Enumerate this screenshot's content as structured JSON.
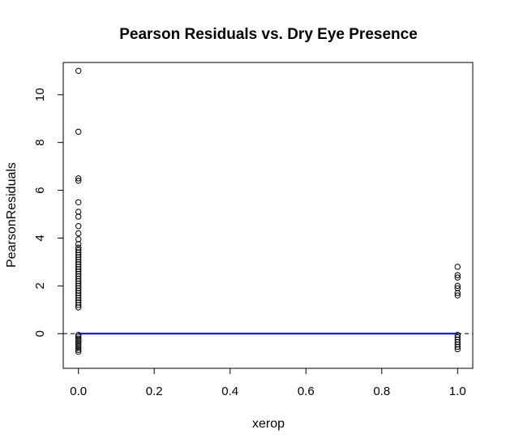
{
  "chart_data": {
    "type": "scatter",
    "title": "Pearson Residuals vs. Dry Eye Presence",
    "xlabel": "xerop",
    "ylabel": "PearsonResiduals",
    "xlim": [
      -0.04,
      1.04
    ],
    "ylim": [
      -1.45,
      11.35
    ],
    "x_ticks": [
      0.0,
      0.2,
      0.4,
      0.6,
      0.8,
      1.0
    ],
    "x_tick_labels": [
      "0.0",
      "0.2",
      "0.4",
      "0.6",
      "0.8",
      "1.0"
    ],
    "y_ticks": [
      0,
      2,
      4,
      6,
      8,
      10
    ],
    "y_tick_labels": [
      "0",
      "2",
      "4",
      "6",
      "8",
      "10"
    ],
    "grid": false,
    "legend": "none",
    "series": [
      {
        "marker": "open-circle",
        "points": [
          {
            "x": 0,
            "y": 11.0
          },
          {
            "x": 0,
            "y": 8.45
          },
          {
            "x": 0,
            "y": 6.5
          },
          {
            "x": 0,
            "y": 6.4
          },
          {
            "x": 0,
            "y": 5.5
          },
          {
            "x": 0,
            "y": 5.1
          },
          {
            "x": 0,
            "y": 4.9
          },
          {
            "x": 0,
            "y": 4.5
          },
          {
            "x": 0,
            "y": 4.2
          },
          {
            "x": 0,
            "y": 3.95
          },
          {
            "x": 0,
            "y": 3.75
          },
          {
            "x": 0,
            "y": 3.6
          },
          {
            "x": 0,
            "y": 3.5
          },
          {
            "x": 0,
            "y": 3.4
          },
          {
            "x": 0,
            "y": 3.3
          },
          {
            "x": 0,
            "y": 3.2
          },
          {
            "x": 0,
            "y": 3.1
          },
          {
            "x": 0,
            "y": 3.0
          },
          {
            "x": 0,
            "y": 2.9
          },
          {
            "x": 0,
            "y": 2.8
          },
          {
            "x": 0,
            "y": 2.7
          },
          {
            "x": 0,
            "y": 2.6
          },
          {
            "x": 0,
            "y": 2.5
          },
          {
            "x": 0,
            "y": 2.4
          },
          {
            "x": 0,
            "y": 2.3
          },
          {
            "x": 0,
            "y": 2.2
          },
          {
            "x": 0,
            "y": 2.1
          },
          {
            "x": 0,
            "y": 2.0
          },
          {
            "x": 0,
            "y": 1.9
          },
          {
            "x": 0,
            "y": 1.8
          },
          {
            "x": 0,
            "y": 1.7
          },
          {
            "x": 0,
            "y": 1.6
          },
          {
            "x": 0,
            "y": 1.5
          },
          {
            "x": 0,
            "y": 1.4
          },
          {
            "x": 0,
            "y": 1.3
          },
          {
            "x": 0,
            "y": 1.2
          },
          {
            "x": 0,
            "y": 1.1
          },
          {
            "x": 0,
            "y": -0.05
          },
          {
            "x": 0,
            "y": -0.12
          },
          {
            "x": 0,
            "y": -0.2
          },
          {
            "x": 0,
            "y": -0.28
          },
          {
            "x": 0,
            "y": -0.36
          },
          {
            "x": 0,
            "y": -0.44
          },
          {
            "x": 0,
            "y": -0.52
          },
          {
            "x": 0,
            "y": -0.6
          },
          {
            "x": 0,
            "y": -0.68
          },
          {
            "x": 0,
            "y": -0.76
          },
          {
            "x": 1,
            "y": 2.8
          },
          {
            "x": 1,
            "y": 2.45
          },
          {
            "x": 1,
            "y": 2.35
          },
          {
            "x": 1,
            "y": 2.0
          },
          {
            "x": 1,
            "y": 1.9
          },
          {
            "x": 1,
            "y": 1.7
          },
          {
            "x": 1,
            "y": 1.6
          },
          {
            "x": 1,
            "y": -0.05
          },
          {
            "x": 1,
            "y": -0.15
          },
          {
            "x": 1,
            "y": -0.25
          },
          {
            "x": 1,
            "y": -0.35
          },
          {
            "x": 1,
            "y": -0.45
          },
          {
            "x": 1,
            "y": -0.55
          },
          {
            "x": 1,
            "y": -0.65
          }
        ]
      }
    ],
    "reference_line": {
      "y": 0,
      "style": "dashed",
      "color": "#000000"
    },
    "fit_line": {
      "x": [
        0,
        1
      ],
      "y": [
        0,
        0
      ],
      "color": "#0000cc"
    }
  }
}
